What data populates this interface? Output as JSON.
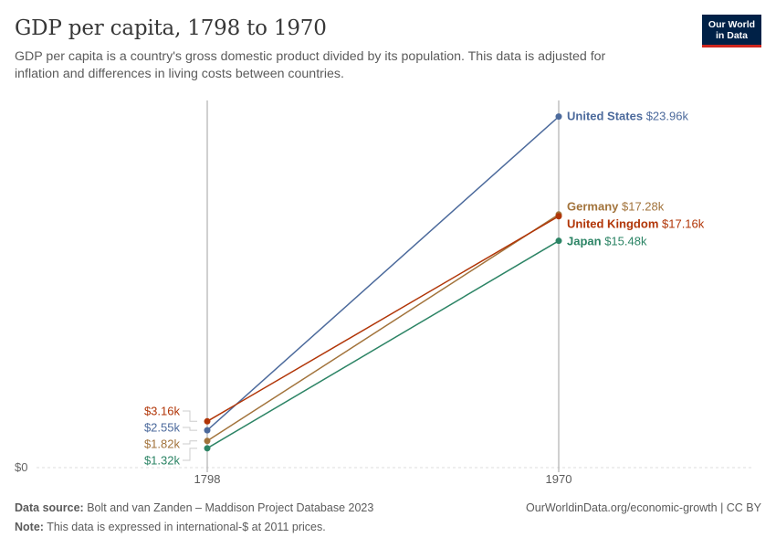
{
  "title": "GDP per capita, 1798 to 1970",
  "subtitle": "GDP per capita is a country's gross domestic product divided by its population. This data is adjusted for inflation and differences in living costs between countries.",
  "logo": {
    "line1": "Our World",
    "line2": "in Data"
  },
  "footer": {
    "source_label": "Data source:",
    "source_text": "Bolt and van Zanden – Maddison Project Database 2023",
    "note_label": "Note:",
    "note_text": "This data is expressed in international-$ at 2011 prices.",
    "right_text": "OurWorldinData.org/economic-growth | CC BY"
  },
  "chart_data": {
    "type": "line",
    "x": [
      "1798",
      "1970"
    ],
    "y_tick_label": "$0",
    "ylim": [
      0,
      24000
    ],
    "series": [
      {
        "name": "United States",
        "color": "#4c6a9c",
        "values": [
          2550,
          23960
        ],
        "start_label": "$2.55k",
        "end_label": "$23.96k"
      },
      {
        "name": "Germany",
        "color": "#a2733b",
        "values": [
          1820,
          17280
        ],
        "start_label": "$1.82k",
        "end_label": "$17.28k"
      },
      {
        "name": "United Kingdom",
        "color": "#b13507",
        "values": [
          3160,
          17160
        ],
        "start_label": "$3.16k",
        "end_label": "$17.16k"
      },
      {
        "name": "Japan",
        "color": "#2c8465",
        "values": [
          1320,
          15480
        ],
        "start_label": "$1.32k",
        "end_label": "$15.48k"
      }
    ]
  }
}
